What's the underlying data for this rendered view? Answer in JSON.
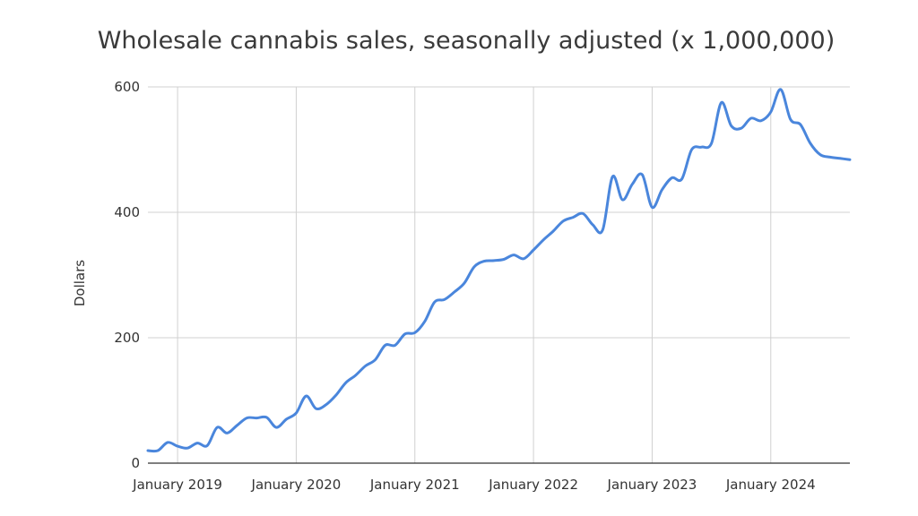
{
  "chart_data": {
    "type": "line",
    "title": "Wholesale cannabis sales, seasonally adjusted (x 1,000,000)",
    "xlabel": "",
    "ylabel": "Dollars",
    "ylim": [
      0,
      600
    ],
    "y_ticks": [
      0,
      200,
      400,
      600
    ],
    "y_tick_labels": [
      "0",
      "200",
      "400",
      "600"
    ],
    "x_ticks": [
      "January 2019",
      "January 2020",
      "January 2021",
      "January 2022",
      "January 2023",
      "January 2024"
    ],
    "x_tick_positions": [
      0,
      12,
      24,
      36,
      48,
      60
    ],
    "x_range": [
      -3,
      68
    ],
    "grid": true,
    "series": [
      {
        "name": "Wholesale cannabis sales",
        "color": "#4a86dc",
        "x": [
          -3,
          -2,
          -1,
          0,
          1,
          2,
          3,
          4,
          5,
          6,
          7,
          8,
          9,
          10,
          11,
          12,
          13,
          14,
          15,
          16,
          17,
          18,
          19,
          20,
          21,
          22,
          23,
          24,
          25,
          26,
          27,
          28,
          29,
          30,
          31,
          32,
          33,
          34,
          35,
          36,
          37,
          38,
          39,
          40,
          41,
          42,
          43,
          44,
          45,
          46,
          47,
          48,
          49,
          50,
          51,
          52,
          53,
          54,
          55,
          56,
          57,
          58,
          59,
          60,
          61,
          62,
          63,
          64,
          65,
          66,
          67,
          68
        ],
        "values": [
          20,
          20,
          33,
          27,
          24,
          32,
          28,
          57,
          48,
          60,
          72,
          72,
          73,
          57,
          70,
          80,
          107,
          87,
          93,
          108,
          128,
          140,
          155,
          165,
          188,
          188,
          206,
          208,
          226,
          257,
          261,
          273,
          287,
          313,
          322,
          323,
          325,
          332,
          326,
          340,
          356,
          370,
          386,
          392,
          398,
          380,
          372,
          457,
          420,
          445,
          460,
          408,
          436,
          455,
          453,
          500,
          504,
          510,
          575,
          538,
          534,
          550,
          546,
          560,
          596,
          548,
          540,
          510,
          492,
          488,
          486,
          484
        ]
      }
    ]
  }
}
